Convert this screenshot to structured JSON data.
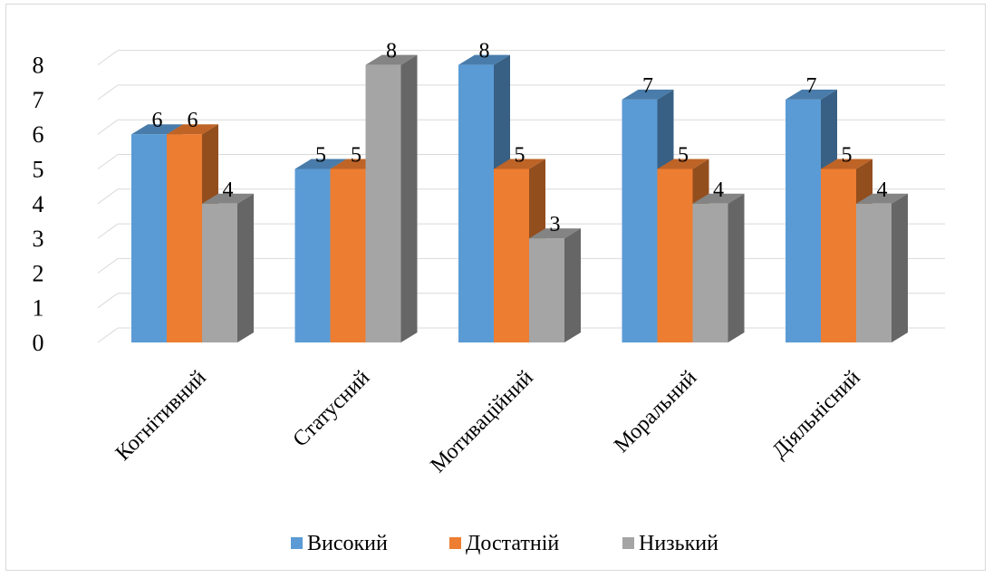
{
  "chart_data": {
    "type": "bar",
    "categories": [
      "Когнітивний",
      "Статусний",
      "Мотиваційний",
      "Моральний",
      "Діяльнісний"
    ],
    "series": [
      {
        "name": "Високий",
        "values": [
          6,
          5,
          8,
          7,
          7
        ],
        "color": "#5b9bd5"
      },
      {
        "name": "Достатній",
        "values": [
          6,
          5,
          5,
          5,
          5
        ],
        "color": "#ed7d31"
      },
      {
        "name": "Низький",
        "values": [
          4,
          8,
          3,
          4,
          4
        ],
        "color": "#a5a5a5"
      }
    ],
    "ylim": [
      0,
      8
    ],
    "yticks": [
      "0",
      "1",
      "2",
      "3",
      "4",
      "5",
      "6",
      "7",
      "8"
    ],
    "grid": true,
    "three_d": true,
    "legend_position": "bottom"
  }
}
